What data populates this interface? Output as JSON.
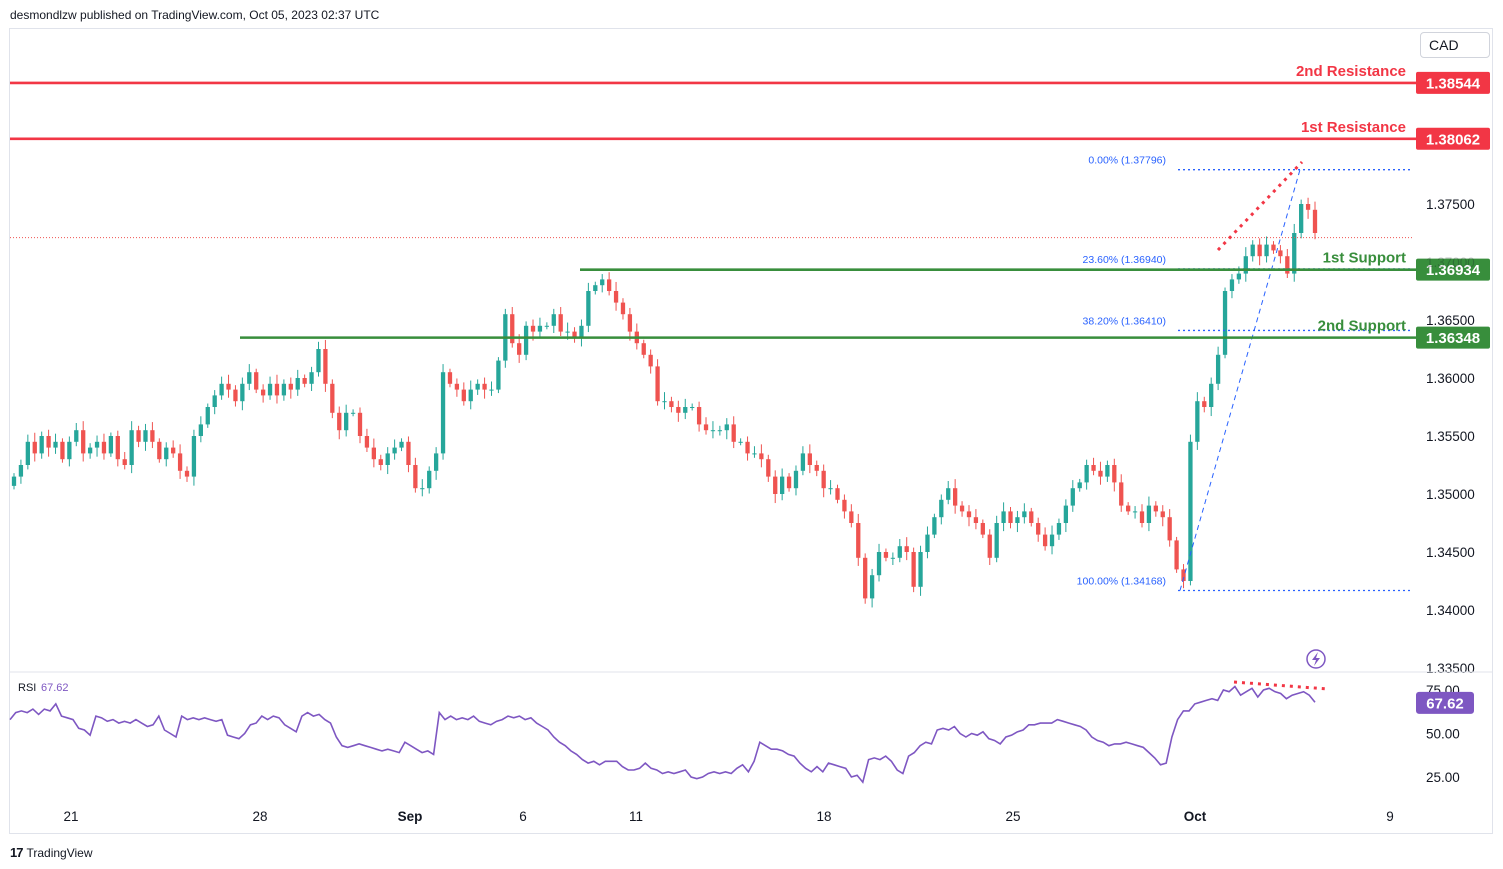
{
  "header": {
    "published_text": "desmondlzw published on TradingView.com, Oct 05, 2023 02:37 UTC"
  },
  "currency_label": "CAD",
  "footer": {
    "logo_text": "TradingView",
    "logo_icon": "tradingview-logo-icon"
  },
  "colors": {
    "up": "#26a69a",
    "down": "#ef5350",
    "resistance": "#f23645",
    "support": "#388e3c",
    "fib": "#2962ff",
    "rsi": "#7e57c2",
    "divergence": "#f23645"
  },
  "chart_data": [
    {
      "type": "candlestick",
      "title": "",
      "ylim": [
        1.333,
        1.389
      ],
      "y_ticks": [
        "1.33500",
        "1.34000",
        "1.34500",
        "1.35000",
        "1.35500",
        "1.36000",
        "1.36500",
        "1.37000",
        "1.37500"
      ],
      "x_ticks": [
        "21",
        "28",
        "Sep",
        "6",
        "11",
        "18",
        "25",
        "Oct",
        "9"
      ],
      "last_price_dotted": 1.3721,
      "levels": [
        {
          "label": "2nd Resistance",
          "value": "1.38544",
          "kind": "resistance"
        },
        {
          "label": "1st Resistance",
          "value": "1.38062",
          "kind": "resistance"
        },
        {
          "label": "1st Support",
          "value": "1.36934",
          "kind": "support"
        },
        {
          "label": "2nd Support",
          "value": "1.36348",
          "kind": "support"
        }
      ],
      "fibonacci": [
        {
          "label": "0.00% (1.37796)",
          "value": 1.37796
        },
        {
          "label": "23.60% (1.36940)",
          "value": 1.3694
        },
        {
          "label": "38.20% (1.36410)",
          "value": 1.3641
        },
        {
          "label": "100.00% (1.34168)",
          "value": 1.34168
        }
      ],
      "close_series": [
        1.3515,
        1.3525,
        1.3545,
        1.3535,
        1.355,
        1.354,
        1.3545,
        1.353,
        1.3545,
        1.3555,
        1.3535,
        1.354,
        1.3545,
        1.3535,
        1.355,
        1.353,
        1.3525,
        1.3555,
        1.3545,
        1.3555,
        1.3545,
        1.353,
        1.354,
        1.3535,
        1.352,
        1.3515,
        1.355,
        1.356,
        1.3575,
        1.3585,
        1.3595,
        1.359,
        1.358,
        1.3595,
        1.3605,
        1.359,
        1.3585,
        1.3595,
        1.3585,
        1.3595,
        1.359,
        1.36,
        1.3595,
        1.3605,
        1.3625,
        1.3595,
        1.357,
        1.3555,
        1.357,
        1.357,
        1.355,
        1.354,
        1.353,
        1.3525,
        1.3535,
        1.354,
        1.3545,
        1.3525,
        1.3505,
        1.3505,
        1.352,
        1.3535,
        1.3605,
        1.3595,
        1.359,
        1.358,
        1.359,
        1.3595,
        1.359,
        1.359,
        1.3615,
        1.3655,
        1.363,
        1.362,
        1.3645,
        1.364,
        1.3645,
        1.3645,
        1.3655,
        1.364,
        1.364,
        1.3635,
        1.3645,
        1.3675,
        1.368,
        1.3685,
        1.3675,
        1.3665,
        1.3655,
        1.364,
        1.363,
        1.362,
        1.361,
        1.358,
        1.358,
        1.3575,
        1.357,
        1.3575,
        1.3575,
        1.356,
        1.3555,
        1.3555,
        1.3555,
        1.356,
        1.3545,
        1.3545,
        1.3535,
        1.3535,
        1.353,
        1.3515,
        1.35,
        1.3515,
        1.3505,
        1.352,
        1.3535,
        1.3525,
        1.352,
        1.3505,
        1.3505,
        1.3495,
        1.3485,
        1.3475,
        1.3445,
        1.341,
        1.343,
        1.345,
        1.3445,
        1.3445,
        1.3455,
        1.345,
        1.342,
        1.345,
        1.3465,
        1.348,
        1.3495,
        1.3505,
        1.349,
        1.3485,
        1.348,
        1.3475,
        1.3465,
        1.3445,
        1.3475,
        1.3485,
        1.3475,
        1.348,
        1.3485,
        1.3475,
        1.3465,
        1.3455,
        1.3465,
        1.3475,
        1.349,
        1.3505,
        1.351,
        1.3525,
        1.352,
        1.3515,
        1.3525,
        1.351,
        1.349,
        1.3485,
        1.3485,
        1.3475,
        1.349,
        1.3485,
        1.348,
        1.346,
        1.3435,
        1.3425,
        1.3545,
        1.358,
        1.3575,
        1.3595,
        1.362,
        1.3675,
        1.3685,
        1.369,
        1.3705,
        1.3715,
        1.3705,
        1.3715,
        1.371,
        1.3705,
        1.369,
        1.3725,
        1.375,
        1.3745,
        1.3725
      ],
      "rsi": {
        "label": "RSI",
        "value": "67.62",
        "ylim": [
          0,
          100
        ],
        "y_ticks": [
          "25.00",
          "50.00",
          "75.00"
        ],
        "series": [
          58,
          62,
          63,
          62,
          64,
          61,
          64,
          63,
          67,
          60,
          59,
          58,
          53,
          52,
          49,
          60,
          59,
          57,
          58,
          56,
          57,
          56,
          58,
          56,
          54,
          55,
          60,
          52,
          50,
          48,
          60,
          58,
          59,
          58,
          59,
          58,
          57,
          58,
          49,
          48,
          47,
          50,
          55,
          56,
          60,
          58,
          60,
          59,
          55,
          53,
          51,
          60,
          62,
          60,
          61,
          58,
          56,
          48,
          43,
          42,
          43,
          44,
          43,
          42,
          41,
          40,
          41,
          40,
          39,
          45,
          43,
          41,
          39,
          40,
          38,
          62,
          58,
          60,
          58,
          59,
          58,
          60,
          57,
          56,
          55,
          57,
          58,
          60,
          59,
          60,
          58,
          59,
          56,
          54,
          52,
          48,
          45,
          43,
          40,
          38,
          35,
          33,
          34,
          32,
          34,
          34,
          34,
          31,
          29,
          29,
          30,
          33,
          30,
          29,
          27,
          28,
          27,
          28,
          29,
          25,
          24,
          25,
          27,
          28,
          27,
          28,
          27,
          30,
          32,
          28,
          34,
          45,
          43,
          41,
          41,
          40,
          38,
          37,
          33,
          30,
          28,
          31,
          28,
          33,
          32,
          31,
          30,
          25,
          26,
          22,
          35,
          36,
          35,
          37,
          34,
          29,
          27,
          37,
          39,
          43,
          45,
          44,
          52,
          53,
          52,
          54,
          50,
          48,
          50,
          49,
          51,
          47,
          46,
          44,
          48,
          49,
          51,
          52,
          55,
          55,
          56,
          56,
          56,
          58,
          57,
          56,
          55,
          54,
          52,
          48,
          46,
          45,
          43,
          44,
          44,
          45,
          44,
          43,
          42,
          39,
          36,
          32,
          33,
          48,
          58,
          63,
          63,
          67,
          68,
          69,
          70,
          69,
          75,
          74,
          77,
          72,
          74,
          76,
          71,
          75,
          76,
          74,
          73,
          70,
          72,
          73,
          74,
          72,
          68
        ]
      }
    }
  ]
}
